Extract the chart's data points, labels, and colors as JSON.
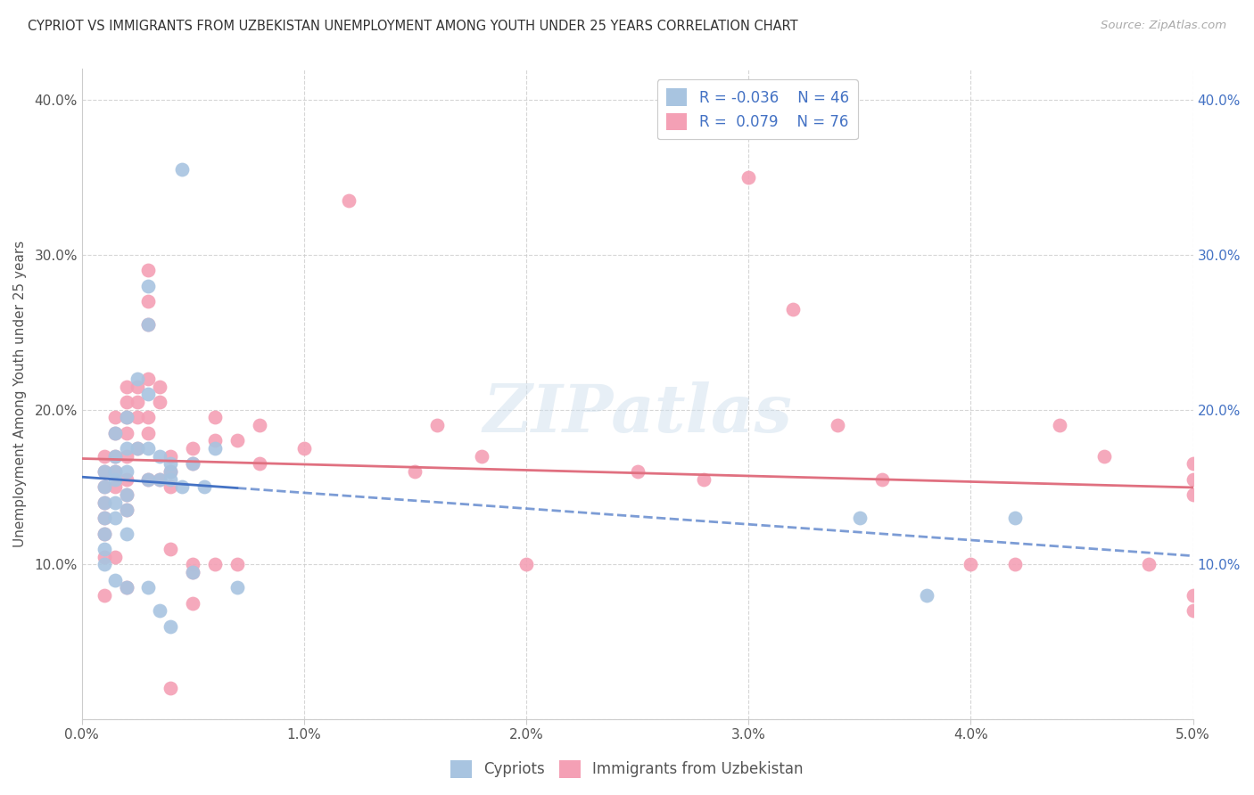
{
  "title": "CYPRIOT VS IMMIGRANTS FROM UZBEKISTAN UNEMPLOYMENT AMONG YOUTH UNDER 25 YEARS CORRELATION CHART",
  "source": "Source: ZipAtlas.com",
  "ylabel": "Unemployment Among Youth under 25 years",
  "xlim": [
    0.0,
    0.05
  ],
  "ylim": [
    0.0,
    0.42
  ],
  "xticks": [
    0.0,
    0.01,
    0.02,
    0.03,
    0.04,
    0.05
  ],
  "xtick_labels": [
    "0.0%",
    "1.0%",
    "2.0%",
    "3.0%",
    "4.0%",
    "5.0%"
  ],
  "yticks": [
    0.0,
    0.1,
    0.2,
    0.3,
    0.4
  ],
  "ytick_labels": [
    "",
    "10.0%",
    "20.0%",
    "30.0%",
    "40.0%"
  ],
  "legend_r1": "R = -0.036",
  "legend_n1": "N = 46",
  "legend_r2": "R =  0.079",
  "legend_n2": "N = 76",
  "color_blue": "#a8c4e0",
  "color_pink": "#f4a0b5",
  "line_blue": "#4472c4",
  "line_pink": "#e07080",
  "watermark": "ZIPatlas",
  "blue_x": [
    0.001,
    0.001,
    0.001,
    0.001,
    0.001,
    0.001,
    0.001,
    0.0015,
    0.0015,
    0.0015,
    0.0015,
    0.0015,
    0.0015,
    0.0015,
    0.002,
    0.002,
    0.002,
    0.002,
    0.002,
    0.002,
    0.002,
    0.0025,
    0.0025,
    0.003,
    0.003,
    0.003,
    0.003,
    0.003,
    0.003,
    0.0035,
    0.0035,
    0.0035,
    0.004,
    0.004,
    0.004,
    0.004,
    0.0045,
    0.0045,
    0.005,
    0.005,
    0.0055,
    0.006,
    0.007,
    0.035,
    0.038,
    0.042
  ],
  "blue_y": [
    0.16,
    0.15,
    0.14,
    0.13,
    0.12,
    0.11,
    0.1,
    0.185,
    0.17,
    0.16,
    0.155,
    0.14,
    0.13,
    0.09,
    0.195,
    0.175,
    0.16,
    0.145,
    0.135,
    0.12,
    0.085,
    0.22,
    0.175,
    0.28,
    0.255,
    0.21,
    0.175,
    0.155,
    0.085,
    0.17,
    0.155,
    0.07,
    0.165,
    0.16,
    0.155,
    0.06,
    0.355,
    0.15,
    0.165,
    0.095,
    0.15,
    0.175,
    0.085,
    0.13,
    0.08,
    0.13
  ],
  "pink_x": [
    0.001,
    0.001,
    0.001,
    0.001,
    0.001,
    0.001,
    0.001,
    0.001,
    0.0015,
    0.0015,
    0.0015,
    0.0015,
    0.0015,
    0.0015,
    0.002,
    0.002,
    0.002,
    0.002,
    0.002,
    0.002,
    0.002,
    0.002,
    0.002,
    0.0025,
    0.0025,
    0.0025,
    0.0025,
    0.003,
    0.003,
    0.003,
    0.003,
    0.003,
    0.003,
    0.003,
    0.0035,
    0.0035,
    0.0035,
    0.004,
    0.004,
    0.004,
    0.004,
    0.004,
    0.005,
    0.005,
    0.005,
    0.005,
    0.005,
    0.006,
    0.006,
    0.006,
    0.007,
    0.007,
    0.008,
    0.008,
    0.01,
    0.012,
    0.015,
    0.016,
    0.018,
    0.02,
    0.025,
    0.028,
    0.03,
    0.032,
    0.034,
    0.036,
    0.04,
    0.042,
    0.044,
    0.046,
    0.048,
    0.05,
    0.05,
    0.05,
    0.05,
    0.05
  ],
  "pink_y": [
    0.17,
    0.16,
    0.15,
    0.14,
    0.13,
    0.12,
    0.105,
    0.08,
    0.195,
    0.185,
    0.17,
    0.16,
    0.15,
    0.105,
    0.215,
    0.205,
    0.195,
    0.185,
    0.17,
    0.155,
    0.145,
    0.135,
    0.085,
    0.215,
    0.205,
    0.195,
    0.175,
    0.29,
    0.27,
    0.255,
    0.22,
    0.195,
    0.185,
    0.155,
    0.215,
    0.205,
    0.155,
    0.17,
    0.16,
    0.15,
    0.11,
    0.02,
    0.175,
    0.165,
    0.1,
    0.095,
    0.075,
    0.195,
    0.18,
    0.1,
    0.18,
    0.1,
    0.19,
    0.165,
    0.175,
    0.335,
    0.16,
    0.19,
    0.17,
    0.1,
    0.16,
    0.155,
    0.35,
    0.265,
    0.19,
    0.155,
    0.1,
    0.1,
    0.19,
    0.17,
    0.1,
    0.165,
    0.155,
    0.145,
    0.08,
    0.07
  ]
}
